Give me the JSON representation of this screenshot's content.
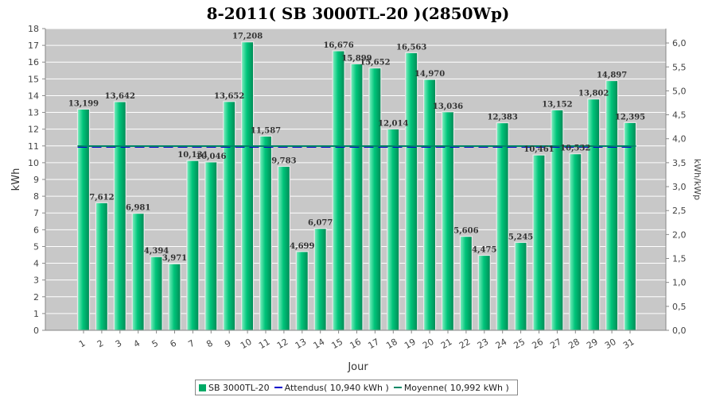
{
  "chart_data": {
    "type": "bar",
    "title": "8-2011( SB 3000TL-20 )(2850Wp)",
    "xlabel": "Jour",
    "ylabel": "kWh",
    "y2label": "kWh/kWp",
    "ylim": [
      0,
      18
    ],
    "y2lim": [
      0,
      6.3
    ],
    "grid": true,
    "legend_position": "bottom",
    "categories": [
      "1",
      "2",
      "3",
      "4",
      "5",
      "6",
      "7",
      "8",
      "9",
      "10",
      "11",
      "12",
      "13",
      "14",
      "15",
      "16",
      "17",
      "18",
      "19",
      "20",
      "21",
      "22",
      "23",
      "24",
      "25",
      "26",
      "27",
      "28",
      "29",
      "30",
      "31"
    ],
    "yticks": [
      "0",
      "1",
      "2",
      "3",
      "4",
      "5",
      "6",
      "7",
      "8",
      "9",
      "10",
      "11",
      "12",
      "13",
      "14",
      "15",
      "16",
      "17",
      "18"
    ],
    "y2ticks": [
      "0,0",
      "0,5",
      "1,0",
      "1,5",
      "2,0",
      "2,5",
      "3,0",
      "3,5",
      "4,0",
      "4,5",
      "5,0",
      "5,5",
      "6,0"
    ],
    "series": [
      {
        "name": "SB 3000TL-20",
        "color": "#00aa66",
        "values": [
          13.199,
          7.612,
          13.642,
          6.981,
          4.394,
          3.971,
          10.131,
          10.046,
          13.652,
          17.208,
          11.587,
          9.783,
          4.699,
          6.077,
          16.676,
          15.899,
          15.652,
          12.014,
          16.563,
          14.97,
          13.036,
          5.606,
          4.475,
          12.383,
          5.245,
          10.461,
          13.152,
          10.532,
          13.802,
          14.897,
          12.395
        ],
        "labels": [
          "13,199",
          "7,612",
          "13,642",
          "6,981",
          "4,394",
          "3,971",
          "10,131",
          "10,046",
          "13,652",
          "17,208",
          "11,587",
          "9,783",
          "4,699",
          "6,077",
          "16,676",
          "15,899",
          "15,652",
          "12,014",
          "16,563",
          "14,970",
          "13,036",
          "5,606",
          "4,475",
          "12,383",
          "5,245",
          "10,461",
          "13,152",
          "10,532",
          "13,802",
          "14,897",
          "12,395"
        ]
      }
    ],
    "reference_lines": [
      {
        "name": "Attendus",
        "value": 10.94,
        "color": "#0000cc",
        "style": "dashed"
      },
      {
        "name": "Moyenne",
        "value": 10.992,
        "color": "#008866",
        "style": "solid"
      }
    ]
  },
  "legend": {
    "bar_label": "SB 3000TL-20",
    "expected_label": "Attendus( 10,940 kWh )",
    "average_label": "Moyenne( 10,992 kWh )",
    "bar_color": "#00aa66",
    "expected_color": "#0000cc",
    "average_color": "#008866"
  }
}
